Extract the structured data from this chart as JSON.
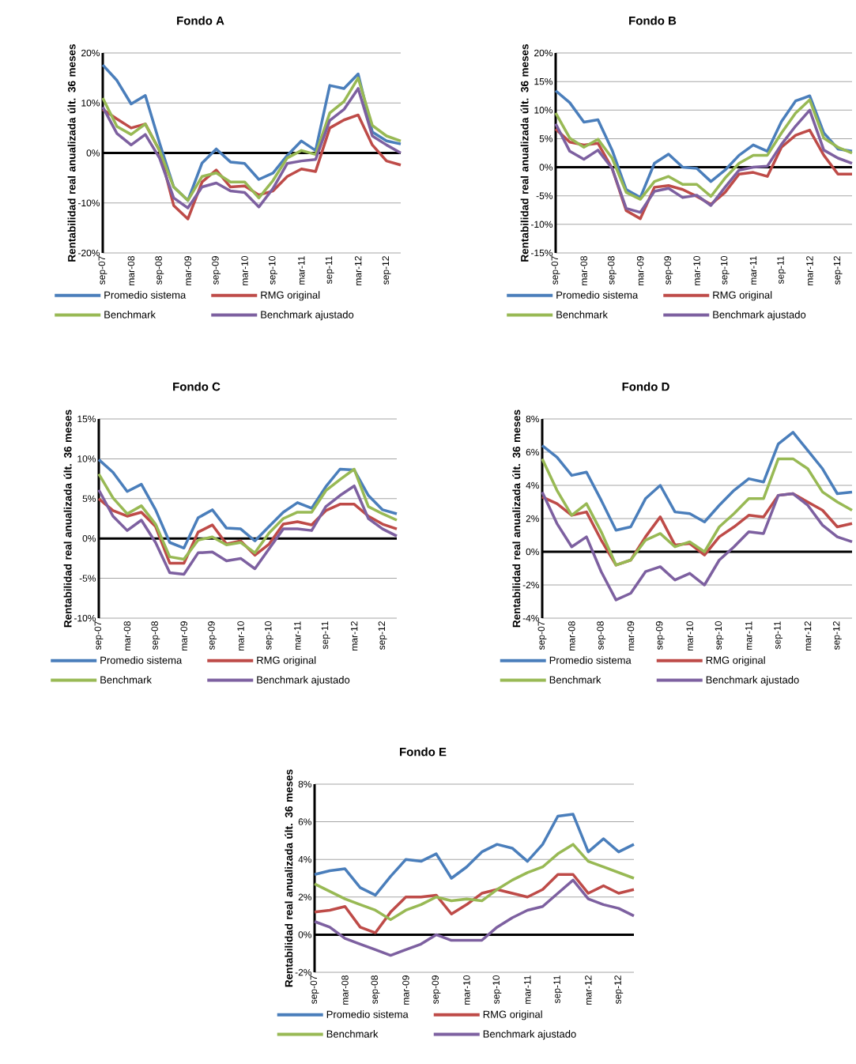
{
  "chart_data": [
    {
      "type": "line",
      "title": "Fondo A",
      "ylabel": "Rentabilidad real anualizada últ. 36 meses",
      "grid": "y",
      "legend": "bottom",
      "ref_lines": [
        {
          "axis": "y",
          "value": 0,
          "color": "#000000"
        }
      ],
      "categories": [
        "sep-07",
        null,
        "mar-08",
        null,
        "sep-08",
        null,
        "mar-09",
        null,
        "sep-09",
        null,
        "mar-10",
        null,
        "sep-10",
        null,
        "mar-11",
        null,
        "sep-11",
        null,
        "mar-12",
        null,
        "sep-12",
        null
      ],
      "ylim": [
        -20,
        20
      ],
      "yticks": [
        {
          "value": -20,
          "label": "-20%"
        },
        {
          "value": -10,
          "label": "-10%"
        },
        {
          "value": 0,
          "label": "0%"
        },
        {
          "value": 10,
          "label": "10%"
        },
        {
          "value": 20,
          "label": "20%"
        }
      ],
      "series": [
        {
          "name": "Promedio sistema",
          "color": "#4a7ebb",
          "values": [
            17.6,
            14.5,
            9.8,
            11.5,
            2.0,
            -6.8,
            -9.5,
            -2.0,
            0.8,
            -1.8,
            -2.1,
            -5.3,
            -4.0,
            -0.5,
            2.4,
            0.5,
            13.5,
            12.9,
            15.8,
            4.2,
            2.4,
            1.8
          ]
        },
        {
          "name": "RMG original",
          "color": "#be4b48",
          "values": [
            8.7,
            6.8,
            5.0,
            5.8,
            0.5,
            -10.5,
            -13.2,
            -5.8,
            -3.4,
            -6.8,
            -6.6,
            -8.4,
            -7.6,
            -4.7,
            -3.2,
            -3.7,
            5.0,
            6.6,
            7.6,
            1.6,
            -1.6,
            -2.4
          ]
        },
        {
          "name": "Benchmark",
          "color": "#98b954",
          "values": [
            11.0,
            5.3,
            3.7,
            5.8,
            0.5,
            -6.8,
            -9.5,
            -4.7,
            -4.0,
            -5.8,
            -5.8,
            -9.0,
            -5.5,
            -1.0,
            0.5,
            -0.3,
            8.0,
            10.3,
            15.0,
            5.5,
            3.4,
            2.4
          ]
        },
        {
          "name": "Benchmark ajustado",
          "color": "#7d60a0",
          "values": [
            9.2,
            3.9,
            1.6,
            3.7,
            -1.0,
            -9.0,
            -11.0,
            -6.8,
            -6.0,
            -7.6,
            -7.9,
            -10.8,
            -7.1,
            -2.1,
            -1.6,
            -1.3,
            6.5,
            8.7,
            12.9,
            3.4,
            1.6,
            0.0
          ]
        }
      ]
    },
    {
      "type": "line",
      "title": "Fondo B",
      "ylabel": "Rentabilidad real anualizada últ. 36 meses",
      "grid": "y",
      "legend": "bottom",
      "ref_lines": [
        {
          "axis": "y",
          "value": 0,
          "color": "#000000"
        }
      ],
      "categories": [
        "sep-07",
        null,
        "mar-08",
        null,
        "sep-08",
        null,
        "mar-09",
        null,
        "sep-09",
        null,
        "mar-10",
        null,
        "sep-10",
        null,
        "mar-11",
        null,
        "sep-11",
        null,
        "mar-12",
        null,
        "sep-12",
        null
      ],
      "ylim": [
        -15,
        20
      ],
      "yticks": [
        {
          "value": -15,
          "label": "-15%"
        },
        {
          "value": -10,
          "label": "-10%"
        },
        {
          "value": -5,
          "label": "-5%"
        },
        {
          "value": 0,
          "label": "0%"
        },
        {
          "value": 5,
          "label": "5%"
        },
        {
          "value": 10,
          "label": "10%"
        },
        {
          "value": 15,
          "label": "15%"
        },
        {
          "value": 20,
          "label": "20%"
        }
      ],
      "series": [
        {
          "name": "Promedio sistema",
          "color": "#4a7ebb",
          "values": [
            13.4,
            11.3,
            7.9,
            8.3,
            3.0,
            -3.9,
            -5.3,
            0.7,
            2.3,
            0.0,
            -0.2,
            -2.5,
            -0.5,
            2.1,
            3.9,
            2.8,
            8.0,
            11.6,
            12.5,
            6.0,
            3.2,
            2.8
          ]
        },
        {
          "name": "RMG original",
          "color": "#be4b48",
          "values": [
            6.7,
            4.4,
            3.9,
            4.2,
            -0.2,
            -7.6,
            -9.0,
            -3.5,
            -3.2,
            -3.9,
            -5.1,
            -6.5,
            -4.4,
            -1.2,
            -0.9,
            -1.6,
            3.5,
            5.6,
            6.5,
            2.1,
            -1.2,
            -1.2
          ]
        },
        {
          "name": "Benchmark",
          "color": "#98b954",
          "values": [
            9.5,
            5.1,
            3.5,
            4.9,
            1.6,
            -4.4,
            -5.6,
            -2.5,
            -1.6,
            -3.0,
            -3.0,
            -5.1,
            -1.9,
            0.7,
            2.1,
            2.1,
            6.0,
            9.5,
            11.8,
            5.1,
            3.5,
            2.5
          ]
        },
        {
          "name": "Benchmark ajustado",
          "color": "#7d60a0",
          "values": [
            7.6,
            2.8,
            1.4,
            3.0,
            -0.2,
            -7.2,
            -7.9,
            -4.2,
            -3.7,
            -5.3,
            -4.9,
            -6.7,
            -3.5,
            -0.5,
            0.0,
            0.2,
            4.0,
            7.2,
            10.0,
            3.0,
            1.6,
            0.7
          ]
        }
      ]
    },
    {
      "type": "line",
      "title": "Fondo C",
      "ylabel": "Rentabilidad real anualizada últ. 36 meses",
      "grid": "y",
      "legend": "bottom",
      "ref_lines": [
        {
          "axis": "y",
          "value": 0,
          "color": "#000000"
        }
      ],
      "categories": [
        "sep-07",
        null,
        "mar-08",
        null,
        "sep-08",
        null,
        "mar-09",
        null,
        "sep-09",
        null,
        "mar-10",
        null,
        "sep-10",
        null,
        "mar-11",
        null,
        "sep-11",
        null,
        "mar-12",
        null,
        "sep-12",
        null
      ],
      "ylim": [
        -10,
        15
      ],
      "yticks": [
        {
          "value": -10,
          "label": "-10%"
        },
        {
          "value": -5,
          "label": "-5%"
        },
        {
          "value": 0,
          "label": "0%"
        },
        {
          "value": 5,
          "label": "5%"
        },
        {
          "value": 10,
          "label": "10%"
        },
        {
          "value": 15,
          "label": "15%"
        }
      ],
      "series": [
        {
          "name": "Promedio sistema",
          "color": "#4a7ebb",
          "values": [
            9.9,
            8.3,
            5.9,
            6.8,
            3.6,
            -0.5,
            -1.2,
            2.6,
            3.6,
            1.3,
            1.2,
            -0.3,
            1.5,
            3.3,
            4.5,
            3.8,
            6.5,
            8.7,
            8.6,
            5.4,
            3.6,
            3.1
          ]
        },
        {
          "name": "RMG original",
          "color": "#be4b48",
          "values": [
            5.0,
            3.5,
            2.8,
            3.3,
            1.5,
            -3.1,
            -3.1,
            0.8,
            1.7,
            -0.7,
            -0.3,
            -2.1,
            -0.7,
            1.8,
            2.1,
            1.7,
            3.5,
            4.3,
            4.3,
            2.8,
            1.8,
            1.2
          ]
        },
        {
          "name": "Benchmark",
          "color": "#98b954",
          "values": [
            8.1,
            5.1,
            3.1,
            4.1,
            1.8,
            -2.3,
            -2.6,
            -0.2,
            0.2,
            -0.8,
            -0.5,
            -1.8,
            0.7,
            2.5,
            3.3,
            3.3,
            6.0,
            7.4,
            8.7,
            4.0,
            3.1,
            2.3
          ]
        },
        {
          "name": "Benchmark ajustado",
          "color": "#7d60a0",
          "values": [
            6.1,
            2.8,
            1.0,
            2.3,
            -0.5,
            -4.3,
            -4.5,
            -1.8,
            -1.7,
            -2.8,
            -2.5,
            -3.8,
            -1.3,
            1.2,
            1.2,
            1.0,
            4.0,
            5.4,
            6.6,
            2.5,
            1.2,
            0.3
          ]
        }
      ]
    },
    {
      "type": "line",
      "title": "Fondo D",
      "ylabel": "Rentabilidad real anualizada últ. 36 meses",
      "grid": "y",
      "legend": "bottom",
      "ref_lines": [
        {
          "axis": "y",
          "value": 0,
          "color": "#000000"
        }
      ],
      "categories": [
        "sep-07",
        null,
        "mar-08",
        null,
        "sep-08",
        null,
        "mar-09",
        null,
        "sep-09",
        null,
        "mar-10",
        null,
        "sep-10",
        null,
        "mar-11",
        null,
        "sep-11",
        null,
        "mar-12",
        null,
        "sep-12",
        null
      ],
      "ylim": [
        -4,
        8
      ],
      "yticks": [
        {
          "value": -4,
          "label": "-4%"
        },
        {
          "value": -2,
          "label": "-2%"
        },
        {
          "value": 0,
          "label": "0%"
        },
        {
          "value": 2,
          "label": "2%"
        },
        {
          "value": 4,
          "label": "4%"
        },
        {
          "value": 6,
          "label": "6%"
        },
        {
          "value": 8,
          "label": "8%"
        }
      ],
      "series": [
        {
          "name": "Promedio sistema",
          "color": "#4a7ebb",
          "values": [
            6.4,
            5.7,
            4.6,
            4.8,
            3.1,
            1.3,
            1.5,
            3.2,
            4.0,
            2.4,
            2.3,
            1.8,
            2.8,
            3.7,
            4.4,
            4.2,
            6.5,
            7.2,
            6.1,
            5.0,
            3.5,
            3.6
          ]
        },
        {
          "name": "RMG original",
          "color": "#be4b48",
          "values": [
            3.3,
            2.9,
            2.2,
            2.4,
            0.7,
            -0.8,
            -0.5,
            0.9,
            2.1,
            0.4,
            0.5,
            -0.2,
            0.9,
            1.5,
            2.2,
            2.1,
            3.4,
            3.5,
            3.0,
            2.5,
            1.5,
            1.7
          ]
        },
        {
          "name": "Benchmark",
          "color": "#98b954",
          "values": [
            5.6,
            3.7,
            2.2,
            2.9,
            1.2,
            -0.8,
            -0.5,
            0.7,
            1.1,
            0.3,
            0.6,
            0.0,
            1.5,
            2.3,
            3.2,
            3.2,
            5.6,
            5.6,
            5.0,
            3.6,
            3.0,
            2.5
          ]
        },
        {
          "name": "Benchmark ajustado",
          "color": "#7d60a0",
          "values": [
            3.6,
            1.7,
            0.3,
            0.9,
            -1.2,
            -2.9,
            -2.5,
            -1.2,
            -0.9,
            -1.7,
            -1.3,
            -2.0,
            -0.5,
            0.3,
            1.2,
            1.1,
            3.4,
            3.5,
            2.8,
            1.6,
            0.9,
            0.6
          ]
        }
      ]
    },
    {
      "type": "line",
      "title": "Fondo E",
      "ylabel": "Rentabilidad real anualizada últ. 36 meses",
      "grid": "y",
      "legend": "bottom",
      "ref_lines": [
        {
          "axis": "y",
          "value": 0,
          "color": "#000000"
        }
      ],
      "categories": [
        "sep-07",
        null,
        "mar-08",
        null,
        "sep-08",
        null,
        "mar-09",
        null,
        "sep-09",
        null,
        "mar-10",
        null,
        "sep-10",
        null,
        "mar-11",
        null,
        "sep-11",
        null,
        "mar-12",
        null,
        "sep-12",
        null
      ],
      "ylim": [
        -2,
        8
      ],
      "yticks": [
        {
          "value": -2,
          "label": "-2%"
        },
        {
          "value": 0,
          "label": "0%"
        },
        {
          "value": 2,
          "label": "2%"
        },
        {
          "value": 4,
          "label": "4%"
        },
        {
          "value": 6,
          "label": "6%"
        },
        {
          "value": 8,
          "label": "8%"
        }
      ],
      "series": [
        {
          "name": "Promedio sistema",
          "color": "#4a7ebb",
          "values": [
            3.2,
            3.4,
            3.5,
            2.5,
            2.1,
            3.1,
            4.0,
            3.9,
            4.3,
            3.0,
            3.6,
            4.4,
            4.8,
            4.6,
            3.9,
            4.8,
            6.3,
            6.4,
            4.4,
            5.1,
            4.4,
            4.8
          ]
        },
        {
          "name": "RMG original",
          "color": "#be4b48",
          "values": [
            1.2,
            1.3,
            1.5,
            0.4,
            0.1,
            1.2,
            2.0,
            2.0,
            2.1,
            1.1,
            1.6,
            2.2,
            2.4,
            2.2,
            2.0,
            2.4,
            3.2,
            3.2,
            2.2,
            2.6,
            2.2,
            2.4
          ]
        },
        {
          "name": "Benchmark",
          "color": "#98b954",
          "values": [
            2.7,
            2.3,
            1.9,
            1.6,
            1.3,
            0.8,
            1.3,
            1.6,
            2.0,
            1.8,
            1.9,
            1.8,
            2.4,
            2.9,
            3.3,
            3.6,
            4.3,
            4.8,
            3.9,
            3.6,
            3.3,
            3.0
          ]
        },
        {
          "name": "Benchmark ajustado",
          "color": "#7d60a0",
          "values": [
            0.7,
            0.4,
            -0.2,
            -0.5,
            -0.8,
            -1.1,
            -0.8,
            -0.5,
            0.0,
            -0.3,
            -0.3,
            -0.3,
            0.4,
            0.9,
            1.3,
            1.5,
            2.2,
            2.9,
            1.9,
            1.6,
            1.4,
            1.0
          ]
        }
      ]
    }
  ]
}
